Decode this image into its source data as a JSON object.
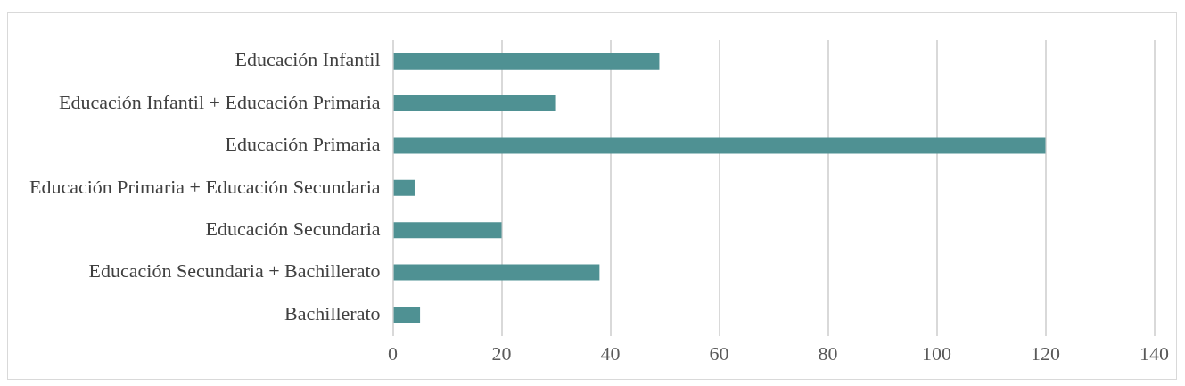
{
  "chart_data": {
    "type": "bar",
    "orientation": "horizontal",
    "categories": [
      "Educación Infantil",
      "Educación Infantil + Educación Primaria",
      "Educación Primaria",
      "Educación Primaria + Educación Secundaria",
      "Educación Secundaria",
      "Educación Secundaria + Bachillerato",
      "Bachillerato"
    ],
    "values": [
      49,
      30,
      120,
      4,
      20,
      38,
      5
    ],
    "color": "#4f9193",
    "xlim": [
      0,
      140
    ],
    "xticks": [
      0,
      20,
      40,
      60,
      80,
      100,
      120,
      140
    ],
    "grid": "x"
  }
}
